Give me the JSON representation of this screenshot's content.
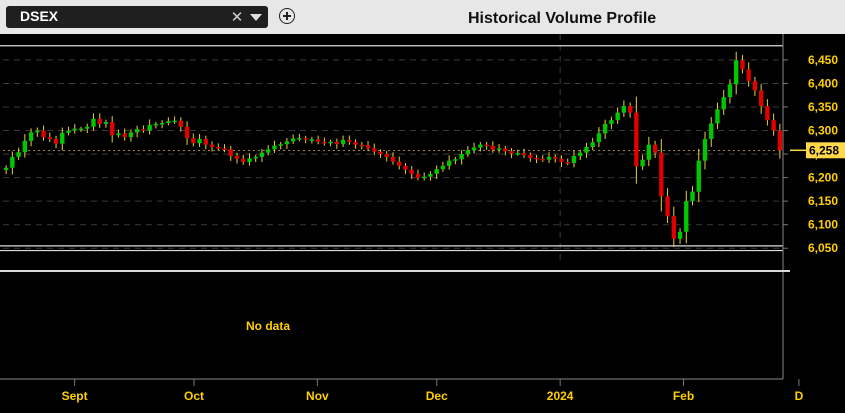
{
  "toolbar": {
    "symbol": "DSEX",
    "clear_icon": "close-icon",
    "dropdown_icon": "chevron-down-icon",
    "add_icon": "plus-circle-icon",
    "title": "Historical Volume Profile"
  },
  "lower_panel": {
    "message": "No data"
  },
  "colors": {
    "up": "#00c800",
    "down": "#e00000",
    "wick": "#e6d23c",
    "axis_text": "#ffd000",
    "last_price_bg": "#ffd84a"
  },
  "chart_data": {
    "type": "candlestick",
    "title": "",
    "xlabel": "",
    "ylabel": "",
    "ylim": [
      6025,
      6505
    ],
    "y_ticks": [
      "6,050",
      "6,100",
      "6,150",
      "6,200",
      "6,250",
      "6,300",
      "6,350",
      "6,400",
      "6,450"
    ],
    "last_price": "6,258",
    "last_price_value": 6258,
    "x_labels": [
      {
        "label": "Sept",
        "date": "2023-09-01"
      },
      {
        "label": "Oct",
        "date": "2023-10-01"
      },
      {
        "label": "Nov",
        "date": "2023-11-01"
      },
      {
        "label": "Dec",
        "date": "2023-12-01"
      },
      {
        "label": "2024",
        "date": "2024-01-01"
      },
      {
        "label": "Feb",
        "date": "2024-02-01"
      },
      {
        "label": "D",
        "date": "2024-03-01"
      }
    ],
    "x_start": "2023-08-14",
    "x_end": "2024-02-26",
    "overlay_lines": [
      6480,
      6055,
      6045
    ],
    "grid": true,
    "closes": [
      6221,
      6244,
      6254,
      6278,
      6296,
      6300,
      6286,
      6282,
      6272,
      6295,
      6300,
      6304,
      6304,
      6308,
      6325,
      6314,
      6318,
      6290,
      6294,
      6286,
      6296,
      6303,
      6300,
      6312,
      6314,
      6316,
      6320,
      6321,
      6308,
      6284,
      6273,
      6282,
      6270,
      6265,
      6262,
      6260,
      6246,
      6240,
      6233,
      6241,
      6244,
      6253,
      6260,
      6268,
      6271,
      6277,
      6283,
      6284,
      6281,
      6281,
      6276,
      6274,
      6276,
      6271,
      6280,
      6276,
      6270,
      6269,
      6262,
      6255,
      6250,
      6244,
      6234,
      6225,
      6217,
      6208,
      6200,
      6202,
      6208,
      6218,
      6225,
      6236,
      6239,
      6250,
      6258,
      6264,
      6270,
      6268,
      6259,
      6262,
      6256,
      6251,
      6252,
      6248,
      6242,
      6240,
      6238,
      6244,
      6240,
      6233,
      6231,
      6246,
      6253,
      6265,
      6275,
      6294,
      6314,
      6322,
      6338,
      6352,
      6338,
      6224,
      6238,
      6270,
      6253,
      6160,
      6118,
      6070,
      6085,
      6150,
      6170,
      6236,
      6282,
      6315,
      6345,
      6371,
      6398,
      6449,
      6430,
      6405,
      6385,
      6352,
      6322,
      6300,
      6258
    ]
  }
}
